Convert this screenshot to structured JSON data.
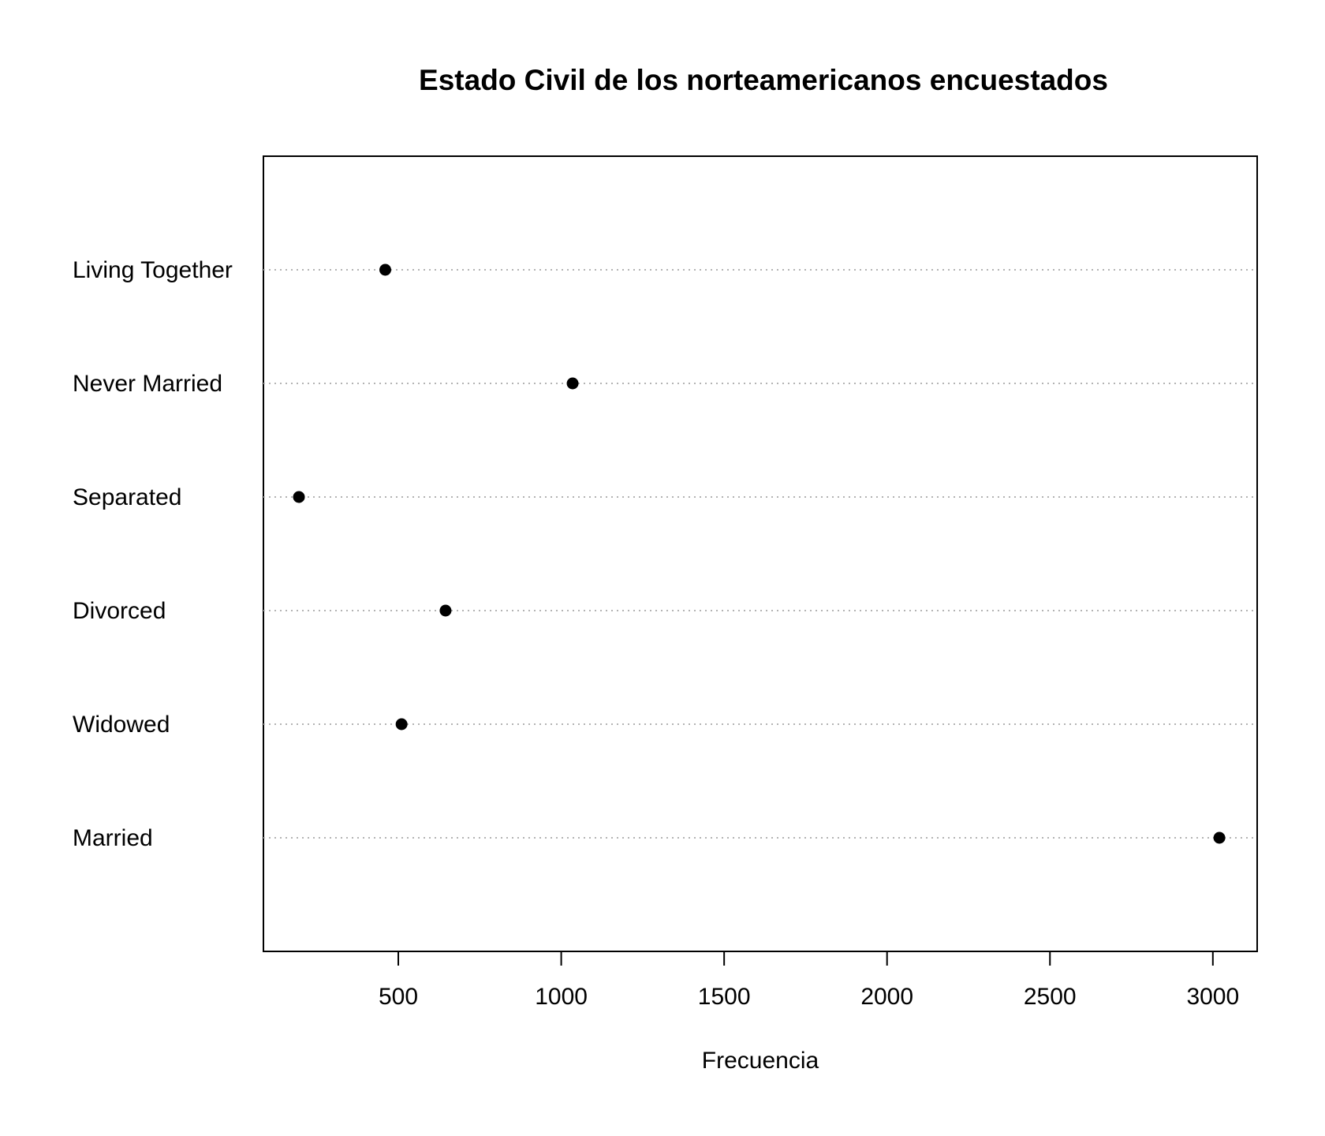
{
  "chart_data": {
    "type": "scatter",
    "subtype": "dotchart",
    "title": "Estado Civil de los norteamericanos encuestados",
    "xlabel": "Frecuencia",
    "ylabel": "",
    "categories": [
      "Married",
      "Widowed",
      "Divorced",
      "Separated",
      "Never Married",
      "Living Together"
    ],
    "values": [
      3020,
      510,
      645,
      195,
      1035,
      460
    ],
    "xlim": [
      86,
      3136
    ],
    "xticks": [
      500,
      1000,
      1500,
      2000,
      2500,
      3000
    ],
    "grid": "dotted horizontal lines per category",
    "legend": "none",
    "point_color": "#000000"
  }
}
